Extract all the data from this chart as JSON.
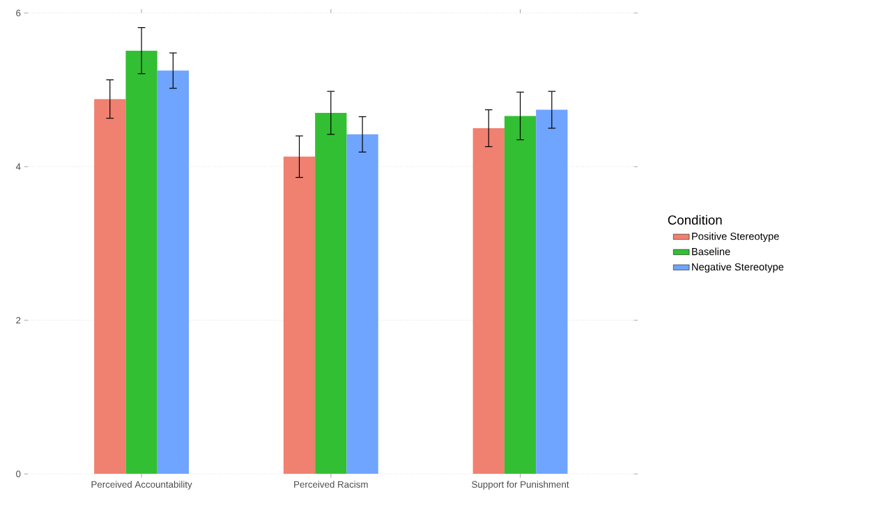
{
  "chart_data": {
    "type": "bar",
    "categories": [
      "Perceived Accountability",
      "Perceived Racism",
      "Support for Punishment"
    ],
    "series": [
      {
        "name": "Positive Stereotype",
        "color": "#f08070",
        "values": [
          4.88,
          4.13,
          4.5
        ],
        "errors": [
          0.25,
          0.27,
          0.24
        ]
      },
      {
        "name": "Baseline",
        "color": "#33bf33",
        "values": [
          5.51,
          4.7,
          4.66
        ],
        "errors": [
          0.3,
          0.28,
          0.31
        ]
      },
      {
        "name": "Negative Stereotype",
        "color": "#6fa4ff",
        "values": [
          5.25,
          4.42,
          4.74
        ],
        "errors": [
          0.23,
          0.23,
          0.24
        ]
      }
    ],
    "legend_title": "Condition",
    "ylim": [
      0,
      6
    ],
    "yticks": [
      0,
      2,
      4,
      6
    ],
    "grid": "y",
    "legend": "right"
  }
}
